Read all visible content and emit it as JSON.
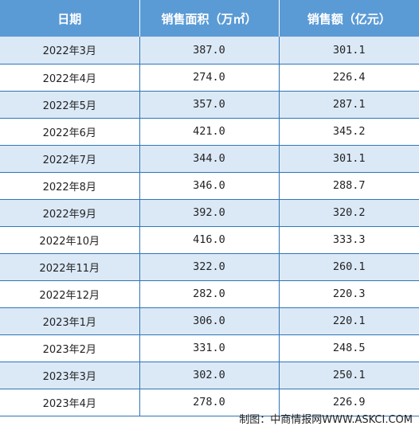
{
  "table": {
    "headers": [
      "日期",
      "销售面积（万㎡）",
      "销售额（亿元）"
    ],
    "rows": [
      {
        "date": "2022年3月",
        "area": "387.0",
        "sales": "301.1"
      },
      {
        "date": "2022年4月",
        "area": "274.0",
        "sales": "226.4"
      },
      {
        "date": "2022年5月",
        "area": "357.0",
        "sales": "287.1"
      },
      {
        "date": "2022年6月",
        "area": "421.0",
        "sales": "345.2"
      },
      {
        "date": "2022年7月",
        "area": "344.0",
        "sales": "301.1"
      },
      {
        "date": "2022年8月",
        "area": "346.0",
        "sales": "288.7"
      },
      {
        "date": "2022年9月",
        "area": "392.0",
        "sales": "320.2"
      },
      {
        "date": "2022年10月",
        "area": "416.0",
        "sales": "333.3"
      },
      {
        "date": "2022年11月",
        "area": "322.0",
        "sales": "260.1"
      },
      {
        "date": "2022年12月",
        "area": "282.0",
        "sales": "220.3"
      },
      {
        "date": "2023年1月",
        "area": "306.0",
        "sales": "220.1"
      },
      {
        "date": "2023年2月",
        "area": "331.0",
        "sales": "248.5"
      },
      {
        "date": "2023年3月",
        "area": "302.0",
        "sales": "250.1"
      },
      {
        "date": "2023年4月",
        "area": "278.0",
        "sales": "226.9"
      }
    ]
  },
  "footer": {
    "source": "制图：中商情报网WWW.ASKCI.COM"
  },
  "colors": {
    "header_bg": "#5b9bd5",
    "stripe_bg": "#dbe9f7",
    "border": "#2e75b6"
  }
}
